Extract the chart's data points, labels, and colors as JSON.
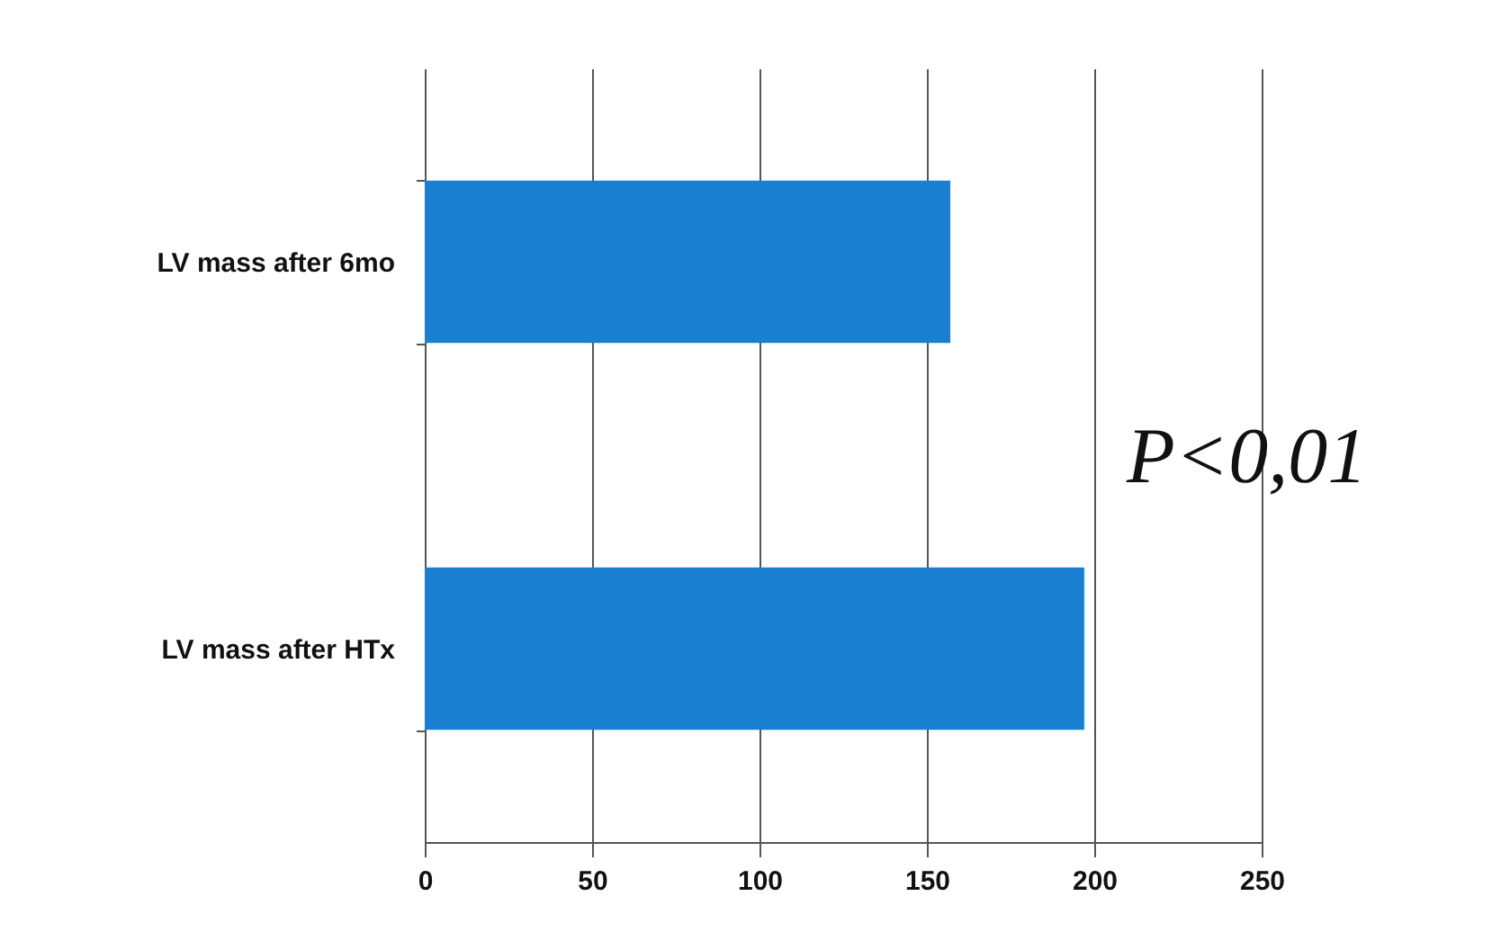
{
  "chart_data": {
    "type": "bar",
    "orientation": "horizontal",
    "categories": [
      "LV mass after 6mo",
      "LV mass after HTx"
    ],
    "values": [
      157,
      197
    ],
    "color": "#1a7fd0",
    "xlim": [
      0,
      250
    ],
    "xticks": [
      0,
      50,
      100,
      150,
      200,
      250
    ],
    "grid": "x",
    "annotations": [
      "P<0,01"
    ]
  }
}
